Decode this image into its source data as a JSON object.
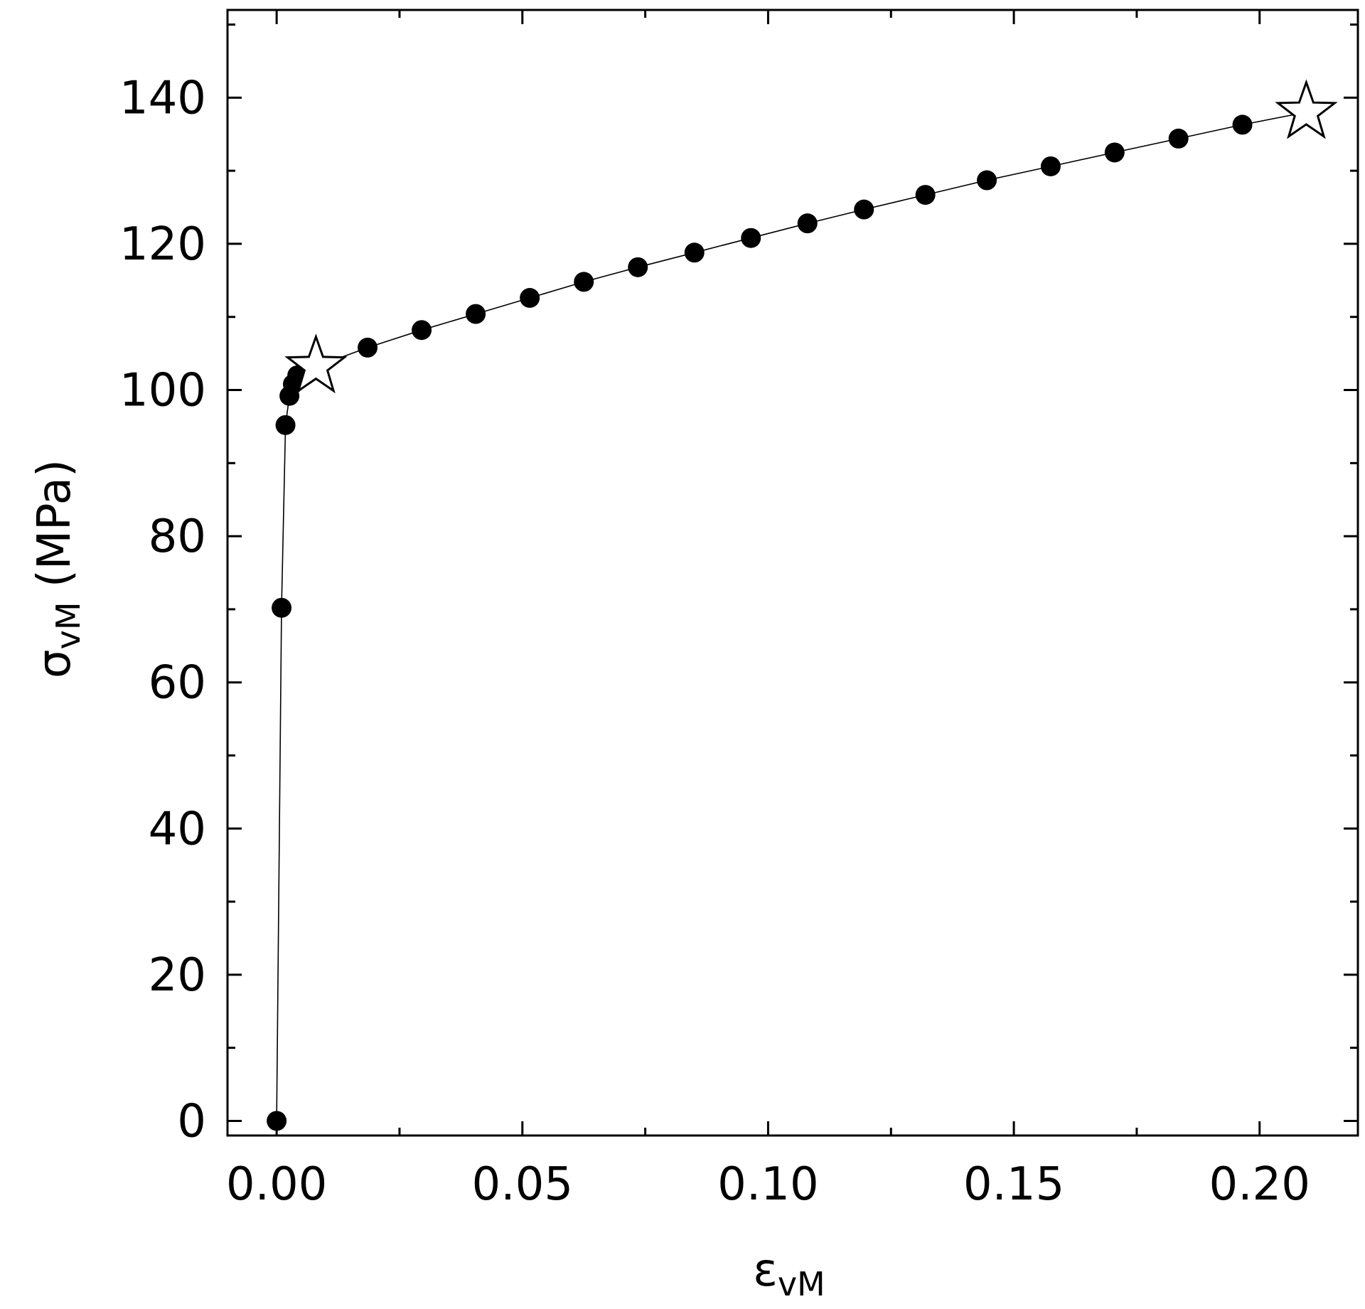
{
  "chart_data": {
    "type": "scatter",
    "xlabel": "ε",
    "xlabel_sub": "vM",
    "ylabel": "σ",
    "ylabel_sub": "vM",
    "ylabel_unit": "(MPa)",
    "xlim": [
      -0.01,
      0.22
    ],
    "ylim": [
      -2,
      152
    ],
    "xticks": [
      0.0,
      0.05,
      0.1,
      0.15,
      0.2
    ],
    "xtick_labels": [
      "0.00",
      "0.05",
      "0.10",
      "0.15",
      "0.20"
    ],
    "yticks": [
      0,
      20,
      40,
      60,
      80,
      100,
      120,
      140
    ],
    "ytick_labels": [
      "0",
      "20",
      "40",
      "60",
      "80",
      "100",
      "120",
      "140"
    ],
    "grid": false,
    "marker_color": "#000000",
    "series": [
      {
        "marker": "filled-circle",
        "x": [
          0.0,
          0.001,
          0.0018,
          0.0026,
          0.0033,
          0.0042,
          0.0185,
          0.0295,
          0.0405,
          0.0515,
          0.0625,
          0.0735,
          0.085,
          0.0965,
          0.108,
          0.1195,
          0.132,
          0.1445,
          0.1575,
          0.1705,
          0.1835,
          0.1965
        ],
        "y": [
          0.0,
          70.2,
          95.2,
          99.2,
          100.8,
          102.0,
          105.8,
          108.2,
          110.4,
          112.6,
          114.8,
          116.8,
          118.8,
          120.8,
          122.8,
          124.7,
          126.7,
          128.7,
          130.6,
          132.5,
          134.4,
          136.3
        ]
      },
      {
        "marker": "open-star",
        "x": [
          0.008,
          0.2095
        ],
        "y": [
          103.2,
          138.0
        ]
      }
    ]
  }
}
